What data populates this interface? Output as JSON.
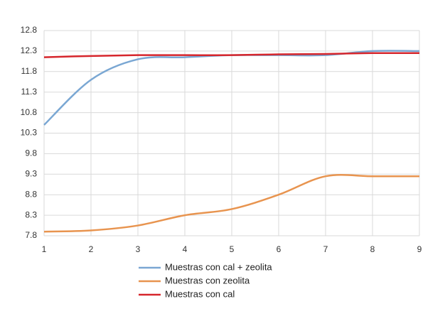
{
  "chart_data": {
    "type": "line",
    "x": [
      1,
      2,
      3,
      4,
      5,
      6,
      7,
      8,
      9
    ],
    "xlim": [
      1,
      9
    ],
    "xticks": [
      1,
      2,
      3,
      4,
      5,
      6,
      7,
      8,
      9
    ],
    "ylim": [
      7.8,
      12.8
    ],
    "yticks": [
      7.8,
      8.3,
      8.8,
      9.3,
      9.8,
      10.3,
      10.8,
      11.3,
      11.8,
      12.3,
      12.8
    ],
    "grid": true,
    "series": [
      {
        "name": "Muestras con cal + zeolita",
        "color": "#7aa7d3",
        "values": [
          10.5,
          11.6,
          12.1,
          12.15,
          12.2,
          12.2,
          12.2,
          12.3,
          12.3
        ]
      },
      {
        "name": "Muestras con zeolita",
        "color": "#e8944f",
        "values": [
          7.9,
          7.93,
          8.05,
          8.3,
          8.45,
          8.8,
          9.25,
          9.25,
          9.25
        ]
      },
      {
        "name": "Muestras con cal",
        "color": "#d6262c",
        "values": [
          12.15,
          12.18,
          12.2,
          12.2,
          12.2,
          12.22,
          12.23,
          12.25,
          12.25
        ]
      }
    ]
  }
}
